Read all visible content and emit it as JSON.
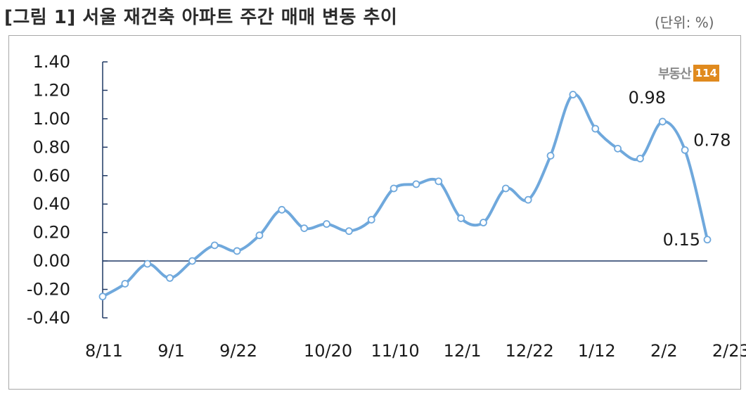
{
  "header": {
    "title": "[그림 1] 서울 재건축 아파트 주간 매매 변동 추이",
    "unit": "(단위: %)"
  },
  "logo": {
    "text": "부동산",
    "badge": "114"
  },
  "colors": {
    "line": "#6fa8dc",
    "marker_fill": "#ffffff",
    "axis": "#1f3864"
  },
  "chart_data": {
    "type": "line",
    "ylim": [
      -0.4,
      1.4
    ],
    "yticks": [
      "1.40",
      "1.20",
      "1.00",
      "0.80",
      "0.60",
      "0.40",
      "0.20",
      "0.00",
      "-0.20",
      "-0.40"
    ],
    "xtick_labels": [
      "8/11",
      "9/1",
      "9/22",
      "10/20",
      "11/10",
      "12/1",
      "12/22",
      "1/12",
      "2/2",
      "2/23"
    ],
    "xtick_positions": [
      0,
      3,
      6,
      10,
      13,
      16,
      19,
      22,
      25,
      28
    ],
    "series": [
      {
        "values": [
          -0.25,
          -0.16,
          -0.02,
          -0.12,
          0.0,
          0.11,
          0.07,
          0.18,
          0.36,
          0.23,
          0.26,
          0.21,
          0.29,
          0.51,
          0.54,
          0.56,
          0.3,
          0.27,
          0.51,
          0.43,
          0.74,
          1.17,
          0.93,
          0.79,
          0.72,
          0.98,
          0.78,
          0.15
        ]
      }
    ],
    "annotations": [
      {
        "index": 25,
        "text": "0.98"
      },
      {
        "index": 26,
        "text": "0.78"
      },
      {
        "index": 27,
        "text": "0.15"
      }
    ]
  }
}
